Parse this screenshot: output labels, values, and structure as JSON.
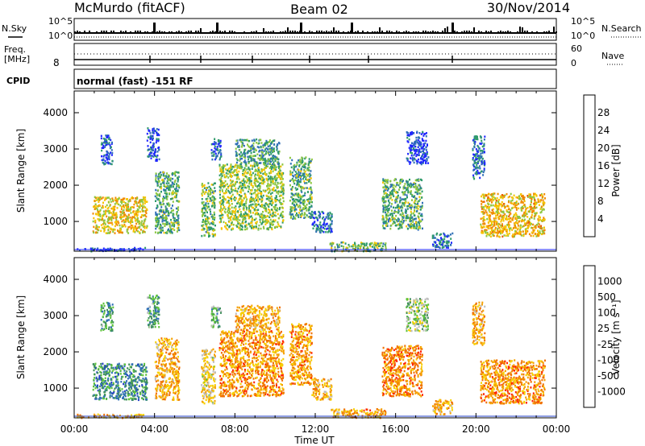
{
  "header": {
    "station": "McMurdo (fitACF)",
    "beam": "Beam 02",
    "date": "30/Nov/2014"
  },
  "strip": {
    "nsky_label": "N.Sky",
    "nsky_top": "10^5",
    "nsky_bot": "10^0",
    "nsearch_label": "N.Search",
    "nsearch_top": "10^5",
    "nsearch_bot": "10^0",
    "freq_label": "Freq.",
    "freq_unit": "[MHz]",
    "freq_value": "8",
    "nave_label": "Nave",
    "nave_top": "60",
    "nave_bot": "0",
    "cpid_label": "CPID",
    "cpid_text": "normal (fast) -151 RF"
  },
  "chart_data": [
    {
      "type": "heatmap",
      "panel": "power",
      "xlabel": "Time UT",
      "ylabel": "Slant Range [km]",
      "ylim": [
        180,
        4600
      ],
      "xlim": [
        "00:00",
        "24:00"
      ],
      "yticks": [
        1000,
        2000,
        3000,
        4000
      ],
      "xticks": [
        "00:00",
        "04:00",
        "08:00",
        "12:00",
        "16:00",
        "20:00",
        "00:00"
      ],
      "colorbar": {
        "label": "Power [dB]",
        "ticks": [
          "4",
          "8",
          "12",
          "16",
          "20",
          "24",
          "28"
        ],
        "colors": [
          "#1e24ff",
          "#2f6fb6",
          "#2e9a6a",
          "#8cc63f",
          "#f5c400",
          "#f08a00",
          "#e85a00",
          "#ff1500"
        ]
      },
      "regions": [
        {
          "t0": 0.9,
          "t1": 3.6,
          "r0": 700,
          "r1": 1700,
          "level": 0.55
        },
        {
          "t0": 1.3,
          "t1": 1.9,
          "r0": 2600,
          "r1": 3400,
          "level": 0.15
        },
        {
          "t0": 3.6,
          "t1": 4.2,
          "r0": 2700,
          "r1": 3600,
          "level": 0.15
        },
        {
          "t0": 4.0,
          "t1": 5.2,
          "r0": 700,
          "r1": 2400,
          "level": 0.35
        },
        {
          "t0": 6.3,
          "t1": 7.0,
          "r0": 600,
          "r1": 2100,
          "level": 0.4
        },
        {
          "t0": 6.8,
          "t1": 7.3,
          "r0": 2700,
          "r1": 3300,
          "level": 0.2
        },
        {
          "t0": 7.2,
          "t1": 10.4,
          "r0": 800,
          "r1": 2600,
          "level": 0.45
        },
        {
          "t0": 8.0,
          "t1": 10.2,
          "r0": 2600,
          "r1": 3300,
          "level": 0.3
        },
        {
          "t0": 10.7,
          "t1": 11.8,
          "r0": 1100,
          "r1": 2800,
          "level": 0.35
        },
        {
          "t0": 11.8,
          "t1": 12.8,
          "r0": 700,
          "r1": 1300,
          "level": 0.2
        },
        {
          "t0": 12.7,
          "t1": 15.5,
          "r0": 200,
          "r1": 450,
          "level": 0.4
        },
        {
          "t0": 15.3,
          "t1": 17.3,
          "r0": 800,
          "r1": 2200,
          "level": 0.35
        },
        {
          "t0": 16.5,
          "t1": 17.6,
          "r0": 2600,
          "r1": 3500,
          "level": 0.1
        },
        {
          "t0": 17.8,
          "t1": 18.8,
          "r0": 300,
          "r1": 700,
          "level": 0.2
        },
        {
          "t0": 19.8,
          "t1": 20.4,
          "r0": 2200,
          "r1": 3400,
          "level": 0.2
        },
        {
          "t0": 20.2,
          "t1": 23.4,
          "r0": 600,
          "r1": 1800,
          "level": 0.6
        },
        {
          "t0": 0.1,
          "t1": 3.5,
          "r0": 200,
          "r1": 300,
          "level": 0.1
        }
      ]
    },
    {
      "type": "heatmap",
      "panel": "velocity",
      "xlabel": "Time UT",
      "ylabel": "Slant Range [km]",
      "ylim": [
        180,
        4600
      ],
      "xlim": [
        "00:00",
        "24:00"
      ],
      "yticks": [
        1000,
        2000,
        3000,
        4000
      ],
      "xticks": [
        "00:00",
        "04:00",
        "08:00",
        "12:00",
        "16:00",
        "20:00",
        "00:00"
      ],
      "colorbar": {
        "label": "Velocity [m s⁻¹]",
        "ticks": [
          "1000",
          "500",
          "100",
          "25",
          "-25",
          "-100",
          "-500",
          "-1000"
        ],
        "colors": [
          "#2340c8",
          "#2f6fb6",
          "#3f8f5c",
          "#5cc23a",
          "#bdbdbd",
          "#f7d000",
          "#f5a000",
          "#f07000",
          "#ff2000"
        ]
      },
      "regions": [
        {
          "t0": 0.9,
          "t1": 3.6,
          "r0": 700,
          "r1": 1700,
          "level": 0.25
        },
        {
          "t0": 1.3,
          "t1": 1.9,
          "r0": 2600,
          "r1": 3400,
          "level": 0.3
        },
        {
          "t0": 3.6,
          "t1": 4.2,
          "r0": 2700,
          "r1": 3600,
          "level": 0.3
        },
        {
          "t0": 4.0,
          "t1": 5.2,
          "r0": 700,
          "r1": 2400,
          "level": 0.7
        },
        {
          "t0": 6.3,
          "t1": 7.0,
          "r0": 600,
          "r1": 2100,
          "level": 0.6
        },
        {
          "t0": 6.8,
          "t1": 7.3,
          "r0": 2700,
          "r1": 3300,
          "level": 0.35
        },
        {
          "t0": 7.2,
          "t1": 10.4,
          "r0": 800,
          "r1": 2600,
          "level": 0.75
        },
        {
          "t0": 8.0,
          "t1": 10.2,
          "r0": 2600,
          "r1": 3300,
          "level": 0.7
        },
        {
          "t0": 10.7,
          "t1": 11.8,
          "r0": 1100,
          "r1": 2800,
          "level": 0.75
        },
        {
          "t0": 11.8,
          "t1": 12.8,
          "r0": 700,
          "r1": 1300,
          "level": 0.7
        },
        {
          "t0": 12.7,
          "t1": 15.5,
          "r0": 200,
          "r1": 450,
          "level": 0.72
        },
        {
          "t0": 15.3,
          "t1": 17.3,
          "r0": 800,
          "r1": 2200,
          "level": 0.78
        },
        {
          "t0": 16.5,
          "t1": 17.6,
          "r0": 2600,
          "r1": 3500,
          "level": 0.45
        },
        {
          "t0": 17.8,
          "t1": 18.8,
          "r0": 300,
          "r1": 700,
          "level": 0.7
        },
        {
          "t0": 19.8,
          "t1": 20.4,
          "r0": 2200,
          "r1": 3400,
          "level": 0.7
        },
        {
          "t0": 20.2,
          "t1": 23.4,
          "r0": 600,
          "r1": 1800,
          "level": 0.76
        },
        {
          "t0": 0.1,
          "t1": 3.5,
          "r0": 200,
          "r1": 300,
          "level": 0.72
        }
      ]
    }
  ]
}
